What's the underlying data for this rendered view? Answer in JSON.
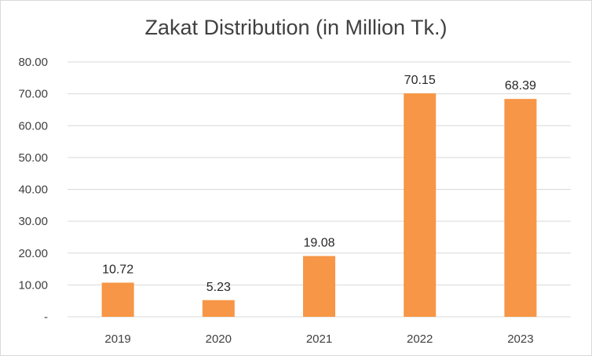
{
  "chart_data": {
    "type": "bar",
    "title": "Zakat Distribution (in Million Tk.)",
    "categories": [
      "2019",
      "2020",
      "2021",
      "2022",
      "2023"
    ],
    "values": [
      10.72,
      5.23,
      19.08,
      70.15,
      68.39
    ],
    "data_labels": [
      "10.72",
      "5.23",
      "19.08",
      "70.15",
      "68.39"
    ],
    "y_ticks": [
      0,
      10,
      20,
      30,
      40,
      50,
      60,
      70,
      80
    ],
    "y_tick_labels": [
      "-",
      "10.00",
      "20.00",
      "30.00",
      "40.00",
      "50.00",
      "60.00",
      "70.00",
      "80.00"
    ],
    "ylim": [
      0,
      80
    ],
    "grid": true,
    "legend": "none",
    "bar_color": "#f79646",
    "gridline_color": "#d9d9d9"
  }
}
